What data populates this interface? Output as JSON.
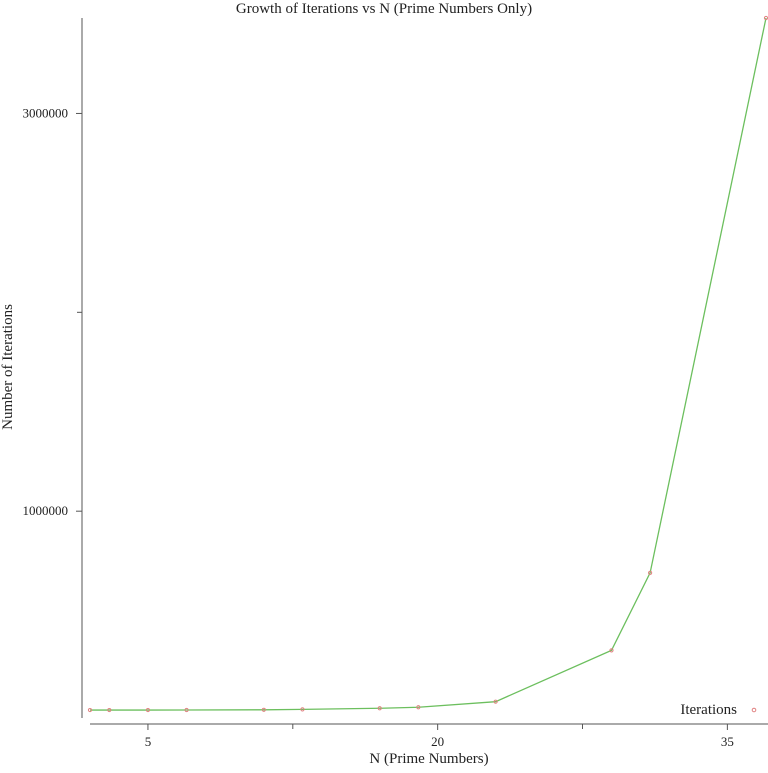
{
  "chart_data": {
    "type": "line",
    "title": "Growth of Iterations vs N (Prime Numbers Only)",
    "xlabel": "N (Prime Numbers)",
    "ylabel": "Number of Iterations",
    "xlim": [
      2,
      37
    ],
    "ylim": [
      -40000,
      3480000
    ],
    "xticks": [
      5,
      20,
      35
    ],
    "xticks_minor": [
      12.5,
      27.5
    ],
    "yticks": [
      1000000,
      3000000
    ],
    "yticks_minor": [
      2000000
    ],
    "grid": false,
    "legend": {
      "position": "bottom-right",
      "entries": [
        "Iterations"
      ]
    },
    "series": [
      {
        "name": "Iterations",
        "line_color": "#6cbf5e",
        "marker_color": "#e08080",
        "x": [
          2,
          3,
          5,
          7,
          11,
          13,
          17,
          19,
          23,
          29,
          31,
          37
        ],
        "y": [
          2,
          6,
          30,
          120,
          1250,
          3200,
          9000,
          14000,
          42000,
          300000,
          690000,
          3480000
        ]
      }
    ]
  }
}
